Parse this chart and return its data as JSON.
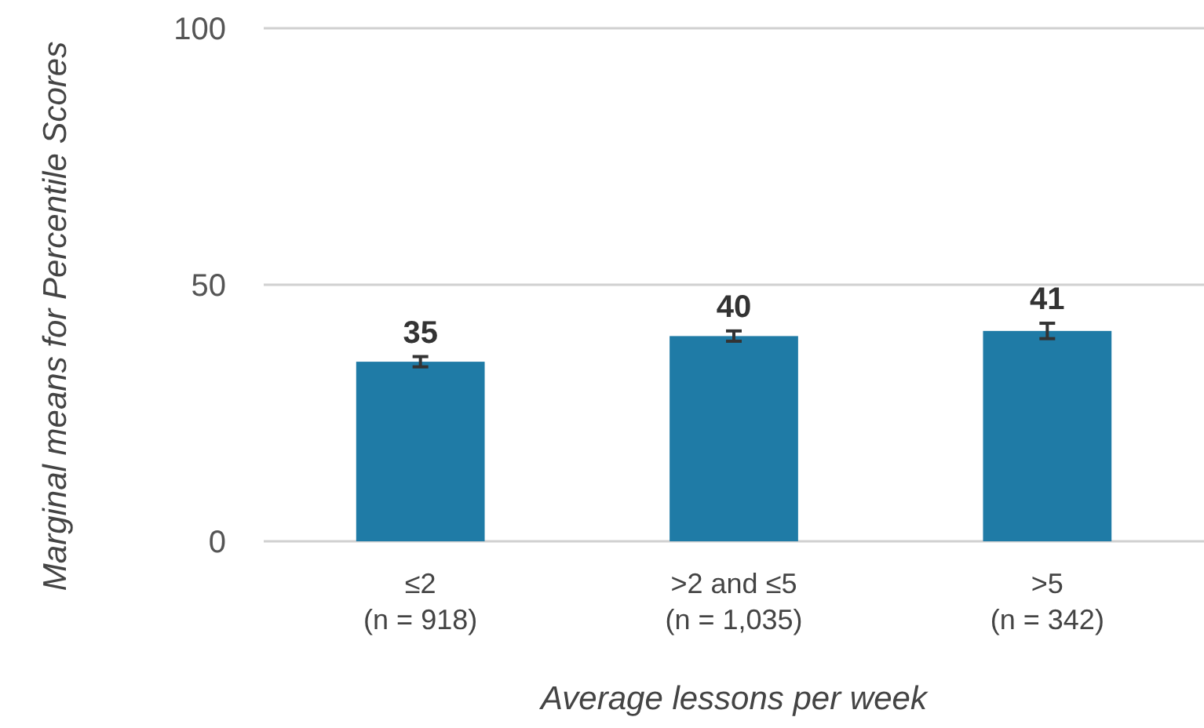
{
  "chart_data": {
    "type": "bar",
    "xlabel": "Average lessons per week",
    "ylabel": "Marginal means for Percentile Scores",
    "categories": [
      "≤2\n(n = 918)",
      ">2 and ≤5\n(n = 1,035)",
      ">5\n(n = 342)"
    ],
    "values": [
      35,
      40,
      41
    ],
    "errors": [
      1,
      1,
      1.5
    ],
    "color": "#1f7ba6",
    "data_labels": true,
    "ylim": [
      0,
      100
    ],
    "yticks": [
      0,
      50,
      100
    ],
    "grid": "y"
  }
}
